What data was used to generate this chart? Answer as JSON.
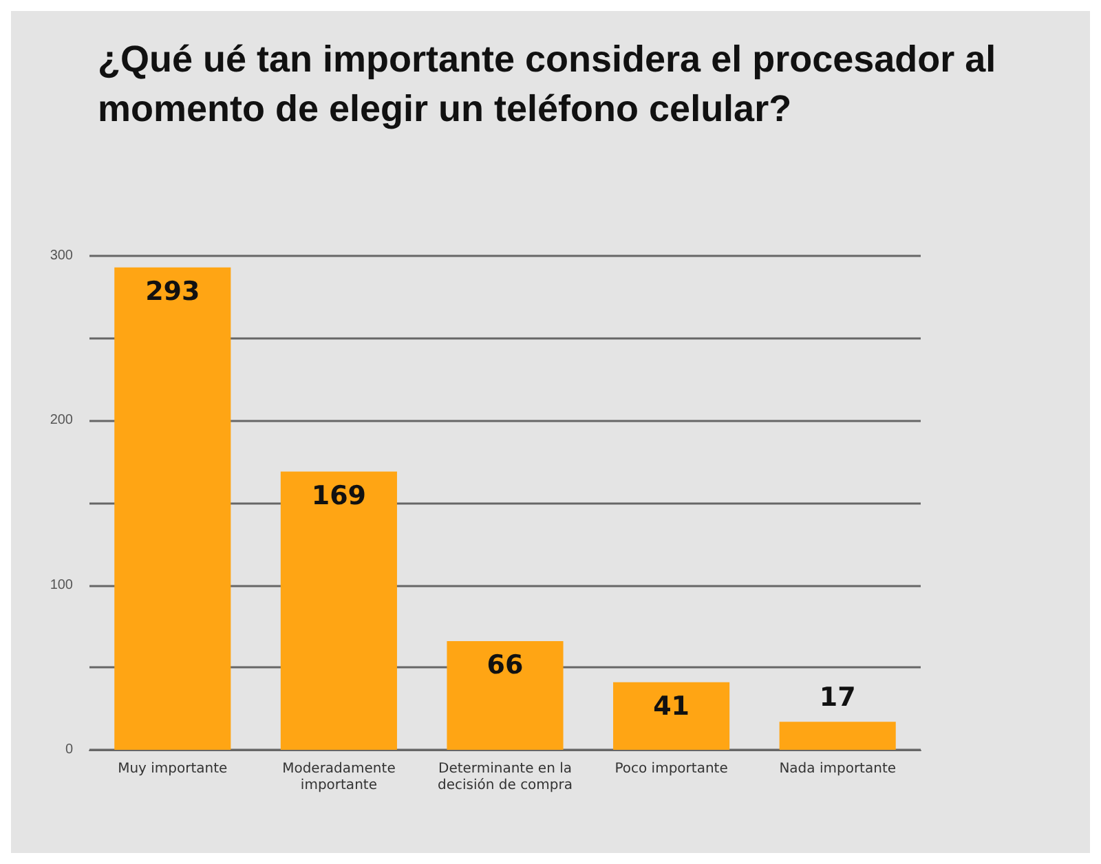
{
  "chart_data": {
    "type": "bar",
    "title": "¿Qué ué tan importante considera el procesador al momento de elegir un teléfono celular?",
    "categories": [
      "Muy importante",
      "Moderadamente importante",
      "Determinante en la decisión de compra",
      "Poco importante",
      "Nada importante"
    ],
    "values": [
      293,
      169,
      66,
      41,
      17
    ],
    "color": "#ffa514",
    "ylim": [
      0,
      300
    ],
    "yticks": [
      0,
      {
        "value": 50,
        "label": null
      },
      100,
      {
        "value": 150,
        "label": null
      },
      200,
      {
        "value": 250,
        "label": null
      },
      300
    ],
    "grid": "y",
    "data_labels": true
  }
}
